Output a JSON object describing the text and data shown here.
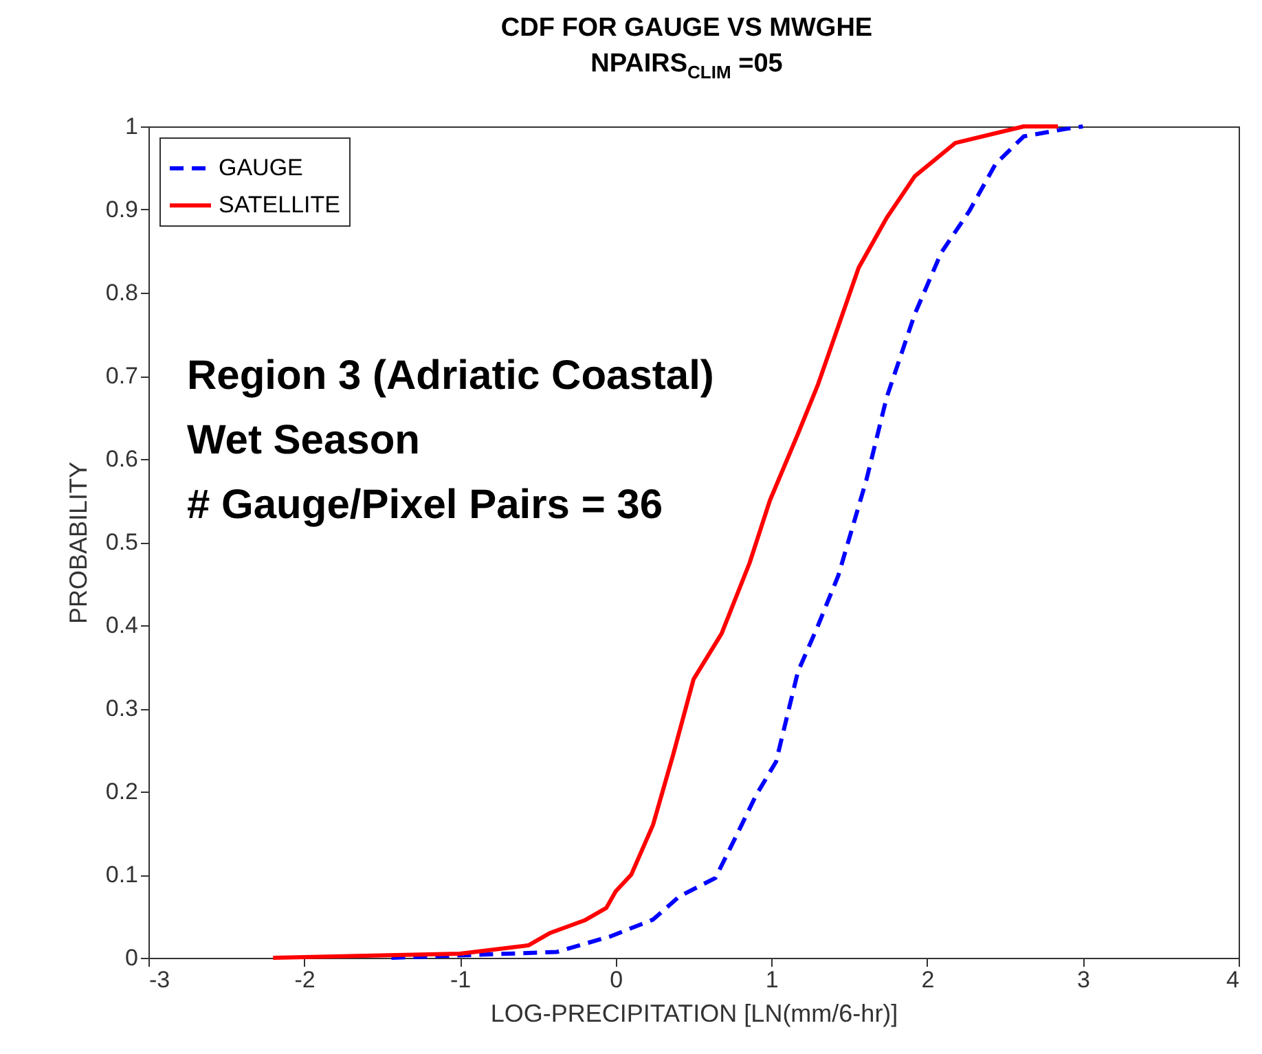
{
  "chart_data": {
    "type": "line",
    "title": "CDF FOR GAUGE VS MWGHE",
    "subtitle": "NPAIRS$_{CLIM}$ =05",
    "xlabel": "LOG-PRECIPITATION [LN(mm/6-hr)]",
    "ylabel": "PROBABILITY",
    "xlim": [
      -3,
      4
    ],
    "xticks": [
      -3,
      -2,
      -1,
      0,
      1,
      2,
      3,
      4
    ],
    "ylim": [
      0,
      1
    ],
    "yticks": [
      0,
      0.1,
      0.2,
      0.3,
      0.4,
      0.5,
      0.6,
      0.7,
      0.8,
      0.9,
      1
    ],
    "legend": "top left",
    "grid": false,
    "annotations": [
      "Region 3 (Adriatic Coastal)",
      "Wet Season",
      "# Gauge/Pixel Pairs = 36"
    ],
    "series": [
      {
        "name": "GAUGE",
        "color": "#0000ff",
        "line_style": "dashed",
        "x": [
          -1.44,
          -0.38,
          -0.03,
          0.24,
          0.41,
          0.64,
          0.77,
          0.9,
          1.03,
          1.17,
          1.3,
          1.43,
          1.61,
          1.74,
          1.92,
          2.09,
          2.27,
          2.44,
          2.62,
          2.89,
          3.0
        ],
        "values": [
          0,
          0.007,
          0.026,
          0.046,
          0.074,
          0.096,
          0.145,
          0.195,
          0.236,
          0.344,
          0.4,
          0.46,
          0.575,
          0.674,
          0.774,
          0.848,
          0.898,
          0.955,
          0.988,
          0.997,
          1.0
        ]
      },
      {
        "name": "SATELLITE",
        "color": "#ff0000",
        "line_style": "solid",
        "x": [
          -2.2,
          -1.0,
          -0.56,
          -0.42,
          -0.2,
          -0.06,
          0,
          0.1,
          0.24,
          0.37,
          0.5,
          0.68,
          0.86,
          0.99,
          1.17,
          1.3,
          1.43,
          1.56,
          1.74,
          1.92,
          2.18,
          2.62,
          2.84
        ],
        "values": [
          0,
          0.005,
          0.015,
          0.03,
          0.045,
          0.06,
          0.08,
          0.1,
          0.16,
          0.245,
          0.335,
          0.39,
          0.475,
          0.55,
          0.63,
          0.69,
          0.76,
          0.83,
          0.89,
          0.94,
          0.98,
          1.0,
          1.0
        ]
      }
    ]
  }
}
